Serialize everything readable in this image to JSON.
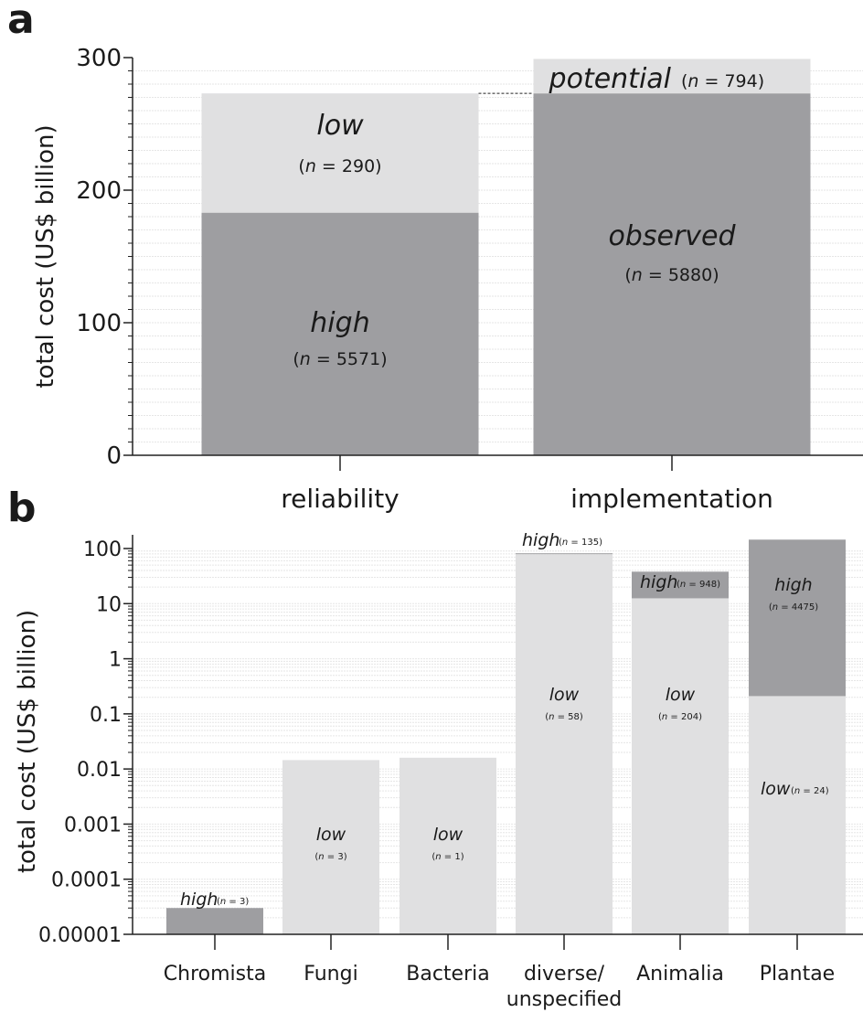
{
  "panel_labels": {
    "a": "a",
    "b": "b"
  },
  "chart_data": [
    {
      "panel": "a",
      "type": "bar",
      "stacked": true,
      "ylabel": "total cost (US$ billion)",
      "ylim": [
        0,
        300
      ],
      "yticks": [
        0,
        100,
        200,
        300
      ],
      "ytick_labels": [
        "0",
        "100",
        "200",
        "300"
      ],
      "categories": [
        "reliability",
        "implementation"
      ],
      "grid": true,
      "connector": "dashed line linking top of reliability bar to observed/potential boundary",
      "segments": [
        {
          "category": "reliability",
          "name": "high",
          "n": "(n = 5571)",
          "from": 0,
          "to": 183,
          "color": "#9e9ea1"
        },
        {
          "category": "reliability",
          "name": "low",
          "n": "(n = 290)",
          "from": 183,
          "to": 273,
          "color": "#e0e0e1"
        },
        {
          "category": "implementation",
          "name": "observed",
          "n": "(n = 5880)",
          "from": 0,
          "to": 273,
          "color": "#9e9ea1"
        },
        {
          "category": "implementation",
          "name": "potential",
          "n": "(n = 794)",
          "from": 273,
          "to": 299,
          "color": "#e0e0e1"
        }
      ]
    },
    {
      "panel": "b",
      "type": "bar",
      "stacked": true,
      "yscale": "log",
      "ylabel": "total cost (US$ billion)",
      "ylim": [
        1e-05,
        100
      ],
      "yticks": [
        1e-05,
        0.0001,
        0.001,
        0.01,
        0.1,
        1,
        10,
        100
      ],
      "ytick_labels": [
        "0.00001",
        "0.0001",
        "0.001",
        "0.01",
        "0.1",
        "1",
        "10",
        "100"
      ],
      "categories": [
        "Chromista",
        "Fungi",
        "Bacteria",
        "diverse/unspecified",
        "Animalia",
        "Plantae"
      ],
      "category_lines": [
        [
          "Chromista"
        ],
        [
          "Fungi"
        ],
        [
          "Bacteria"
        ],
        [
          "diverse/",
          "unspecified"
        ],
        [
          "Animalia"
        ],
        [
          "Plantae"
        ]
      ],
      "grid": true,
      "segments": [
        {
          "category": "Chromista",
          "name": "high",
          "n": "(n = 3)",
          "from": 1e-05,
          "to": 3e-05,
          "color": "#9e9ea1"
        },
        {
          "category": "Fungi",
          "name": "low",
          "n": "(n = 3)",
          "from": 1e-05,
          "to": 0.0145,
          "color": "#e0e0e1"
        },
        {
          "category": "Bacteria",
          "name": "low",
          "n": "(n = 1)",
          "from": 1e-05,
          "to": 0.016,
          "color": "#e0e0e1"
        },
        {
          "category": "diverse/unspecified",
          "name": "low",
          "n": "(n = 58)",
          "from": 1e-05,
          "to": 79,
          "color": "#e0e0e1"
        },
        {
          "category": "diverse/unspecified",
          "name": "high",
          "n": "(n = 135)",
          "from": 79,
          "to": 82,
          "color": "#9e9ea1"
        },
        {
          "category": "Animalia",
          "name": "low",
          "n": "(n = 204)",
          "from": 1e-05,
          "to": 12.5,
          "color": "#e0e0e1"
        },
        {
          "category": "Animalia",
          "name": "high",
          "n": "(n = 948)",
          "from": 12.5,
          "to": 38,
          "color": "#9e9ea1"
        },
        {
          "category": "Plantae",
          "name": "low",
          "n": "(n = 24)",
          "from": 1e-05,
          "to": 0.21,
          "color": "#e0e0e1"
        },
        {
          "category": "Plantae",
          "name": "high",
          "n": "(n = 4475)",
          "from": 0.21,
          "to": 145,
          "color": "#9e9ea1"
        }
      ]
    }
  ]
}
